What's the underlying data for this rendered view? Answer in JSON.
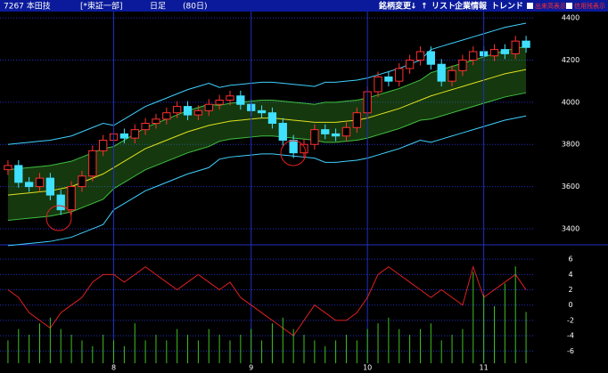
{
  "header": {
    "code": "7267 本田技",
    "market": "[*東証一部]",
    "period": "日足",
    "span": "(80日)",
    "buttons": [
      "銘柄変更",
      "↓",
      "↑",
      "リスト",
      "企業情報",
      "トレンド"
    ],
    "checks": [
      "出来高表示",
      "信用残表示"
    ]
  },
  "chart_data": [
    {
      "type": "candlestick",
      "up_color": "#ff3030",
      "down_color": "#40e0ff",
      "open": [
        3680,
        3700,
        3620,
        3600,
        3640,
        3560,
        3490,
        3600,
        3650,
        3770,
        3820,
        3850,
        3830,
        3870,
        3900,
        3920,
        3950,
        3980,
        3940,
        3960,
        3990,
        4010,
        4030,
        3990,
        3960,
        3950,
        3900,
        3820,
        3760,
        3800,
        3870,
        3850,
        3840,
        3880,
        3950,
        4050,
        4120,
        4100,
        4160,
        4200,
        4240,
        4180,
        4100,
        4150,
        4200,
        4240,
        4220,
        4250,
        4230,
        4290
      ],
      "high": [
        3725,
        3725,
        3645,
        3665,
        3665,
        3585,
        3625,
        3675,
        3795,
        3845,
        3875,
        3875,
        3895,
        3925,
        3945,
        3975,
        4005,
        4005,
        3985,
        4015,
        4035,
        4055,
        4055,
        4015,
        3985,
        3975,
        3925,
        3845,
        3825,
        3895,
        3895,
        3875,
        3905,
        3975,
        4075,
        4145,
        4145,
        4185,
        4225,
        4265,
        4265,
        4205,
        4175,
        4225,
        4265,
        4265,
        4275,
        4275,
        4315,
        4315
      ],
      "low": [
        3655,
        3595,
        3575,
        3575,
        3535,
        3465,
        3465,
        3575,
        3625,
        3745,
        3795,
        3805,
        3805,
        3845,
        3875,
        3895,
        3925,
        3915,
        3915,
        3935,
        3965,
        3985,
        3965,
        3935,
        3925,
        3875,
        3795,
        3735,
        3735,
        3775,
        3825,
        3815,
        3815,
        3855,
        3925,
        4025,
        4075,
        4075,
        4135,
        4175,
        4155,
        4075,
        4075,
        4125,
        4175,
        4195,
        4195,
        4205,
        4205,
        4235
      ],
      "close": [
        3700,
        3620,
        3600,
        3640,
        3560,
        3490,
        3600,
        3650,
        3770,
        3820,
        3850,
        3830,
        3870,
        3900,
        3920,
        3950,
        3980,
        3940,
        3960,
        3990,
        4010,
        4030,
        3990,
        3960,
        3950,
        3900,
        3820,
        3760,
        3800,
        3870,
        3850,
        3840,
        3880,
        3950,
        4050,
        4120,
        4100,
        4160,
        4200,
        4240,
        4180,
        4100,
        4150,
        4200,
        4240,
        4220,
        4250,
        4230,
        4290,
        4260
      ],
      "series": [
        {
          "color": "#40d0ff",
          "values": [
            3800,
            3805,
            3810,
            3815,
            3820,
            3830,
            3840,
            3860,
            3880,
            3900,
            3890,
            3920,
            3950,
            3980,
            4000,
            4020,
            4040,
            4060,
            4075,
            4090,
            4070,
            4080,
            4085,
            4090,
            4095,
            4095,
            4090,
            4085,
            4080,
            4075,
            4095,
            4095,
            4100,
            4105,
            4115,
            4130,
            4145,
            4160,
            4180,
            4200,
            4250,
            4265,
            4280,
            4295,
            4310,
            4325,
            4340,
            4355,
            4365,
            4375
          ]
        },
        {
          "color": "#40d0ff",
          "values": [
            3320,
            3325,
            3330,
            3335,
            3340,
            3350,
            3360,
            3380,
            3400,
            3420,
            3490,
            3520,
            3550,
            3580,
            3600,
            3620,
            3640,
            3660,
            3675,
            3690,
            3730,
            3740,
            3745,
            3750,
            3755,
            3755,
            3750,
            3745,
            3740,
            3735,
            3715,
            3715,
            3720,
            3725,
            3735,
            3750,
            3765,
            3780,
            3800,
            3820,
            3810,
            3825,
            3840,
            3855,
            3870,
            3885,
            3900,
            3915,
            3925,
            3935
          ]
        },
        {
          "color": "#40c040",
          "values": [
            3680,
            3685,
            3690,
            3695,
            3700,
            3710,
            3720,
            3740,
            3760,
            3780,
            3790,
            3820,
            3850,
            3880,
            3900,
            3920,
            3940,
            3960,
            3975,
            3990,
            3985,
            3995,
            4000,
            4005,
            4010,
            4010,
            4005,
            4000,
            3995,
            3990,
            4000,
            4000,
            4005,
            4010,
            4020,
            4035,
            4050,
            4065,
            4085,
            4105,
            4140,
            4155,
            4170,
            4185,
            4200,
            4215,
            4230,
            4245,
            4255,
            4265
          ]
        },
        {
          "color": "#40c040",
          "values": [
            3440,
            3445,
            3450,
            3455,
            3460,
            3470,
            3480,
            3500,
            3520,
            3540,
            3590,
            3620,
            3650,
            3680,
            3700,
            3720,
            3740,
            3760,
            3775,
            3790,
            3815,
            3825,
            3830,
            3835,
            3840,
            3840,
            3835,
            3830,
            3825,
            3820,
            3810,
            3810,
            3815,
            3820,
            3830,
            3845,
            3860,
            3875,
            3895,
            3915,
            3920,
            3935,
            3950,
            3965,
            3980,
            3995,
            4010,
            4025,
            4035,
            4045
          ]
        },
        {
          "color": "#e0e020",
          "values": [
            3560,
            3565,
            3570,
            3575,
            3580,
            3590,
            3600,
            3620,
            3640,
            3660,
            3690,
            3720,
            3750,
            3780,
            3800,
            3820,
            3840,
            3860,
            3875,
            3890,
            3900,
            3910,
            3915,
            3920,
            3925,
            3925,
            3920,
            3915,
            3910,
            3905,
            3905,
            3905,
            3910,
            3915,
            3925,
            3940,
            3955,
            3970,
            3990,
            4010,
            4030,
            4045,
            4060,
            4075,
            4090,
            4105,
            4120,
            4135,
            4145,
            4155
          ]
        }
      ],
      "ylim": [
        3345,
        4430
      ],
      "yticks": [
        3400,
        3600,
        3800,
        4000,
        4200,
        4400
      ],
      "grid": true
    },
    {
      "type": "oscillator",
      "categories": [
        null,
        null,
        null,
        null,
        null,
        null,
        null,
        null,
        null,
        null,
        "8",
        null,
        null,
        null,
        null,
        null,
        null,
        null,
        null,
        null,
        null,
        null,
        null,
        "9",
        null,
        null,
        null,
        null,
        null,
        null,
        null,
        null,
        null,
        null,
        "10",
        null,
        null,
        null,
        null,
        null,
        null,
        null,
        null,
        null,
        null,
        "11",
        null,
        null,
        null,
        null
      ],
      "series": [
        {
          "color": "#e02020",
          "values": [
            2,
            1,
            -1,
            -2,
            -3,
            -1,
            0,
            1,
            3,
            4,
            4,
            3,
            4,
            5,
            4,
            3,
            2,
            3,
            4,
            3,
            2,
            3,
            1,
            0,
            -1,
            -2,
            -3,
            -4,
            -2,
            0,
            -1,
            -2,
            -2,
            -1,
            1,
            4,
            5,
            4,
            3,
            2,
            1,
            2,
            1,
            0,
            5,
            1,
            2,
            3,
            4,
            2
          ]
        },
        {
          "color": "#40c020",
          "axis": "y2",
          "values": [
            20,
            30,
            25,
            35,
            40,
            30,
            25,
            20,
            15,
            25,
            20,
            15,
            35,
            20,
            25,
            20,
            30,
            25,
            20,
            30,
            25,
            20,
            25,
            30,
            20,
            35,
            40,
            30,
            25,
            20,
            15,
            20,
            25,
            20,
            30,
            35,
            40,
            30,
            25,
            30,
            35,
            20,
            25,
            30,
            80,
            60,
            50,
            70,
            85,
            45
          ]
        }
      ],
      "ylim": [
        -7.6,
        7.3
      ],
      "yticks": [
        -6,
        -4,
        -2,
        0,
        2,
        4,
        6
      ],
      "y2lim": [
        0,
        100
      ],
      "grid": true
    }
  ]
}
